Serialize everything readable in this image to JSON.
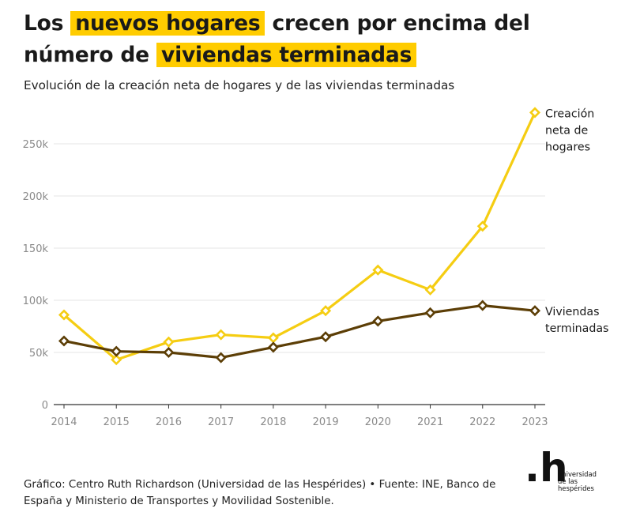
{
  "title": {
    "part1": "Los",
    "highlight1": "nuevos hogares",
    "part2": "crecen por encima del número de",
    "highlight2": "viviendas terminadas"
  },
  "subtitle": "Evolución de la creación neta de hogares y de las viviendas terminadas",
  "footer": {
    "line1": "Gráfico: Centro Ruth Richardson (Universidad de las Hespérides) • Fuente: INE, Banco de",
    "line2": "España y Ministerio de Transportes y Movilidad Sostenible."
  },
  "logo": {
    "mark": ".h",
    "line1": "universidad",
    "line2": "de las",
    "line3": "hespérides"
  },
  "colors": {
    "hogares": "#f5cd12",
    "viviendas": "#5c3e06",
    "highlight": "#ffcc00",
    "grid": "#e4e4e4",
    "tick_text": "#8a8a8a"
  },
  "chart_data": {
    "type": "line",
    "x": [
      "2014",
      "2015",
      "2016",
      "2017",
      "2018",
      "2019",
      "2020",
      "2021",
      "2022",
      "2023"
    ],
    "series": [
      {
        "name": "Creación neta de hogares",
        "label_lines": [
          "Creación",
          "neta de",
          "hogares"
        ],
        "values": [
          86000,
          43000,
          60000,
          67000,
          64000,
          90000,
          129000,
          110000,
          171000,
          280000
        ]
      },
      {
        "name": "Viviendas terminadas",
        "label_lines": [
          "Viviendas",
          "terminadas"
        ],
        "values": [
          61000,
          51000,
          50000,
          45000,
          55000,
          65000,
          80000,
          88000,
          95000,
          90000
        ]
      }
    ],
    "yticks": [
      0,
      50000,
      100000,
      150000,
      200000,
      250000
    ],
    "ytick_labels": [
      "0",
      "50k",
      "100k",
      "150k",
      "200k",
      "250k"
    ],
    "ylim": [
      0,
      280000
    ],
    "grid": true,
    "xlabel": "",
    "ylabel": ""
  }
}
